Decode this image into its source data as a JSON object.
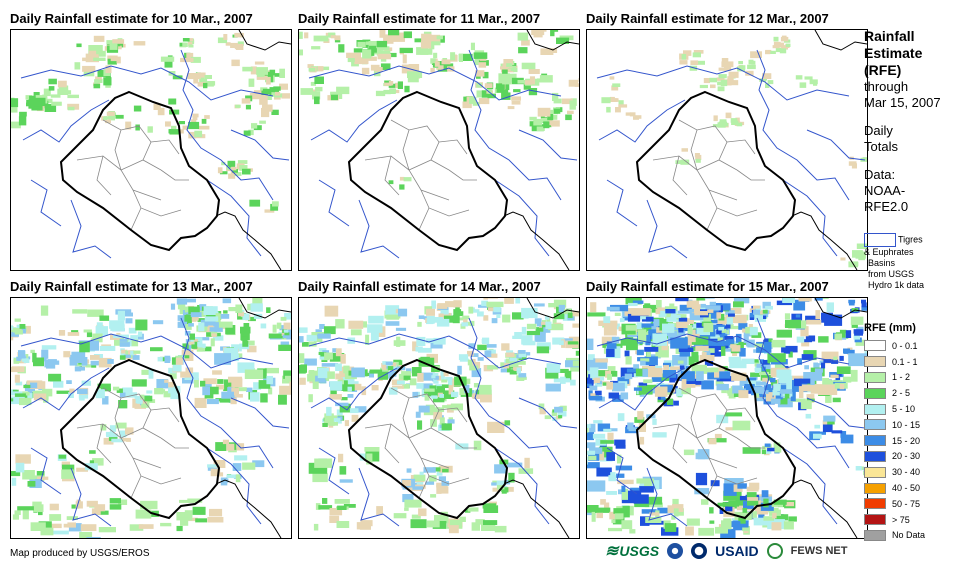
{
  "panels": [
    {
      "title": "Daily Rainfall estimate for 10 Mar., 2007",
      "seed": 10,
      "intensity": 1
    },
    {
      "title": "Daily Rainfall estimate for 11 Mar., 2007",
      "seed": 11,
      "intensity": 1
    },
    {
      "title": "Daily Rainfall estimate for 12 Mar., 2007",
      "seed": 12,
      "intensity": 0
    },
    {
      "title": "Daily Rainfall estimate for 13 Mar., 2007",
      "seed": 13,
      "intensity": 2
    },
    {
      "title": "Daily Rainfall estimate for 14 Mar., 2007",
      "seed": 14,
      "intensity": 2
    },
    {
      "title": "Daily Rainfall estimate for 15 Mar., 2007",
      "seed": 15,
      "intensity": 3
    }
  ],
  "sidebar": {
    "title_line1": "Rainfall",
    "title_line2": "Estimate",
    "title_line3": "(RFE)",
    "through": "through",
    "date": "Mar 15, 2007",
    "daily": "Daily",
    "totals": "Totals",
    "data_label": "Data:",
    "data_source1": "NOAA-",
    "data_source2": "RFE2.0",
    "basin_line1": "Tigres",
    "basin_line2": "& Euphrates",
    "basin_line3": "Basins",
    "basin_line4": "from USGS",
    "basin_line5": "Hydro 1k data"
  },
  "legend": {
    "title": "RFE (mm)",
    "items": [
      {
        "label": "0 - 0.1",
        "color": "#ffffff"
      },
      {
        "label": "0.1 - 1",
        "color": "#e8d6b3"
      },
      {
        "label": "1 - 2",
        "color": "#b5f0a8"
      },
      {
        "label": "2 - 5",
        "color": "#5bd45b"
      },
      {
        "label": "5 - 10",
        "color": "#b2f0f0"
      },
      {
        "label": "10 - 15",
        "color": "#8cc8f0"
      },
      {
        "label": "15 - 20",
        "color": "#3c8ce6"
      },
      {
        "label": "20 - 30",
        "color": "#1e50dc"
      },
      {
        "label": "30 - 40",
        "color": "#fae696"
      },
      {
        "label": "40 - 50",
        "color": "#f5a000"
      },
      {
        "label": "50 - 75",
        "color": "#f03c00"
      },
      {
        "label": "> 75",
        "color": "#b41414"
      },
      {
        "label": "No Data",
        "color": "#a0a0a0"
      }
    ]
  },
  "footer": {
    "credit": "Map produced by USGS/EROS",
    "logo_usgs": "USGS",
    "logo_usaid": "USAID",
    "logo_fews": "FEWS NET"
  }
}
